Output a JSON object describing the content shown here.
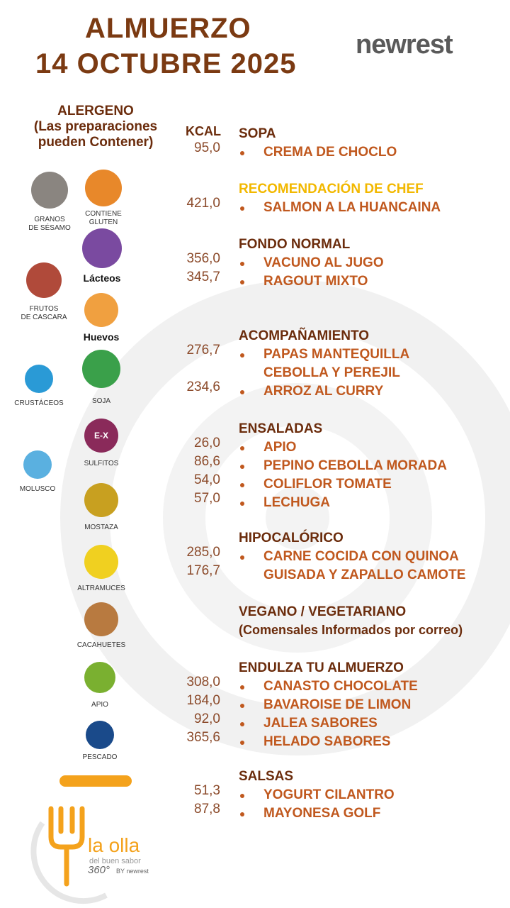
{
  "header": {
    "title": "ALMUERZO",
    "date": "14  OCTUBRE 2025",
    "logo": "newrest"
  },
  "allergen_header": [
    "ALERGENO",
    "(Las preparaciones",
    "pueden Contener)"
  ],
  "kcal_header": "KCAL",
  "allergens": [
    {
      "label": [
        "GRANOS",
        "DE SÉSAMO"
      ],
      "color": "#8a8580"
    },
    {
      "label": [
        "CONTIENE",
        "GLUTEN"
      ],
      "color": "#e8882a"
    },
    {
      "label": [
        "Lácteos"
      ],
      "color": "#7a4aa0"
    },
    {
      "label": [
        "FRUTOS",
        "DE CASCARA"
      ],
      "color": "#b04a3a"
    },
    {
      "label": [
        "Huevos"
      ],
      "color": "#f0a040"
    },
    {
      "label": [
        "CRUSTÁCEOS"
      ],
      "color": "#2a9ad6"
    },
    {
      "label": [
        "SOJA"
      ],
      "color": "#3aa04a"
    },
    {
      "label": [
        "SULFITOS"
      ],
      "color": "#8a2a5a",
      "icon_text": "E-X"
    },
    {
      "label": [
        "MOLUSCO"
      ],
      "color": "#5ab0e0"
    },
    {
      "label": [
        "MOSTAZA"
      ],
      "color": "#c8a020"
    },
    {
      "label": [
        "ALTRAMUCES"
      ],
      "color": "#f0d020"
    },
    {
      "label": [
        "CACAHUETES"
      ],
      "color": "#b87a40"
    },
    {
      "label": [
        "APIO"
      ],
      "color": "#7ab030"
    },
    {
      "label": [
        "PESCADO"
      ],
      "color": "#1a4a8a"
    }
  ],
  "sections": [
    {
      "name": "SOPA",
      "lines": [
        {
          "kcal": "95,0",
          "bullet": true,
          "text": "CREMA DE CHOCLO"
        }
      ]
    },
    {
      "name": "RECOMENDACIÓN DE CHEF",
      "highlight": true,
      "lines": [
        {
          "kcal": "421,0",
          "bullet": true,
          "text": "SALMON A LA HUANCAINA"
        }
      ]
    },
    {
      "name": "FONDO NORMAL",
      "lines": [
        {
          "kcal": "356,0",
          "bullet": true,
          "text": "VACUNO AL JUGO"
        },
        {
          "kcal": "345,7",
          "bullet": true,
          "text": "RAGOUT MIXTO"
        }
      ]
    },
    {
      "name": "ACOMPAÑAMIENTO",
      "lines": [
        {
          "kcal": "276,7",
          "bullet": true,
          "text": "PAPAS MANTEQUILLA"
        },
        {
          "bullet": false,
          "text": "CEBOLLA Y PEREJIL"
        },
        {
          "kcal": "234,6",
          "bullet": true,
          "text": "ARROZ AL CURRY"
        }
      ]
    },
    {
      "name": "ENSALADAS",
      "lines": [
        {
          "kcal": "26,0",
          "bullet": true,
          "text": "APIO"
        },
        {
          "kcal": "86,6",
          "bullet": true,
          "text": "PEPINO CEBOLLA MORADA"
        },
        {
          "kcal": "54,0",
          "bullet": true,
          "text": "COLIFLOR TOMATE"
        },
        {
          "kcal": "57,0",
          "bullet": true,
          "text": "LECHUGA"
        }
      ]
    },
    {
      "name": "HIPOCALÓRICO",
      "lines": [
        {
          "kcal": "285,0",
          "bullet": true,
          "text": "CARNE COCIDA CON QUINOA"
        },
        {
          "kcal": "176,7",
          "bullet": false,
          "text": "GUISADA  Y ZAPALLO CAMOTE"
        }
      ]
    },
    {
      "name": "VEGANO / VEGETARIANO",
      "note": "(Comensales Informados por correo)",
      "lines": []
    },
    {
      "name": "ENDULZA TU ALMUERZO",
      "lines": [
        {
          "kcal": "308,0",
          "bullet": true,
          "text": "CANASTO CHOCOLATE"
        },
        {
          "kcal": "184,0",
          "bullet": true,
          "text": "BAVAROISE  DE LIMON"
        },
        {
          "kcal": "92,0",
          "bullet": true,
          "text": "JALEA SABORES"
        },
        {
          "kcal": "365,6",
          "bullet": true,
          "text": "HELADO SABORES"
        }
      ]
    },
    {
      "name": "SALSAS",
      "lines": [
        {
          "kcal": "51,3",
          "bullet": true,
          "text": "YOGURT  CILANTRO"
        },
        {
          "kcal": "87,8",
          "bullet": true,
          "text": "MAYONESA  GOLF"
        }
      ]
    }
  ],
  "footer": {
    "brand": "la olla",
    "tagline": "del buen sabor",
    "badge": "360°",
    "by": "BY newrest"
  }
}
